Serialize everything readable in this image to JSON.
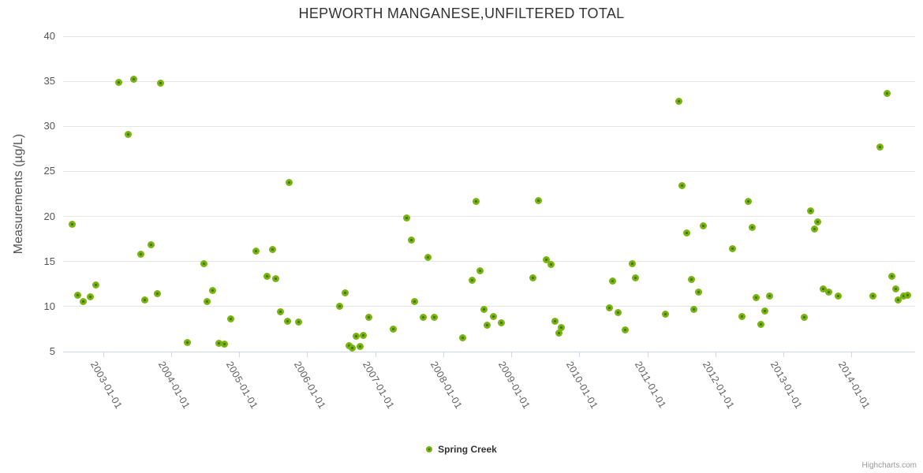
{
  "title": "HEPWORTH MANGANESE,UNFILTERED TOTAL",
  "credits_label": "Highcharts.com",
  "legend": {
    "series_label": "Spring Creek"
  },
  "colors": {
    "marker_fill": "#79b30e",
    "marker_core": "#3f7505",
    "gridline": "#e6e6e6",
    "axis_line": "#ccd6eb",
    "title_text": "#333333",
    "axis_label_text": "#606060",
    "credits_text": "#999999"
  },
  "chart_data": {
    "type": "scatter",
    "title": "HEPWORTH MANGANESE,UNFILTERED TOTAL",
    "xlabel": "",
    "ylabel": "Measurements (µg/L)",
    "ylim": [
      5,
      40
    ],
    "y_ticks": [
      5,
      10,
      15,
      20,
      25,
      30,
      35,
      40
    ],
    "x_tick_labels": [
      "2003-01-01",
      "2004-01-01",
      "2005-01-01",
      "2006-01-01",
      "2007-01-01",
      "2008-01-01",
      "2009-01-01",
      "2010-01-01",
      "2011-01-01",
      "2012-01-01",
      "2013-01-01",
      "2014-01-01"
    ],
    "xlim_decimal_years": [
      2002.41,
      2014.94
    ],
    "grid": true,
    "legend_position": "bottom",
    "x_unit": "decimal_year",
    "series": [
      {
        "name": "Spring Creek",
        "color": "#79b30e",
        "points": [
          [
            2002.54,
            19.1
          ],
          [
            2002.624,
            11.3
          ],
          [
            2002.713,
            10.6
          ],
          [
            2002.81,
            11.1
          ],
          [
            2002.891,
            12.4
          ],
          [
            2003.224,
            34.9
          ],
          [
            2003.366,
            29.1
          ],
          [
            2003.448,
            35.2
          ],
          [
            2003.557,
            15.8
          ],
          [
            2003.615,
            10.7
          ],
          [
            2003.703,
            16.9
          ],
          [
            2003.792,
            11.4
          ],
          [
            2003.846,
            34.8
          ],
          [
            2004.241,
            6.0
          ],
          [
            2004.484,
            14.8
          ],
          [
            2004.531,
            10.6
          ],
          [
            2004.615,
            11.8
          ],
          [
            2004.7,
            5.9
          ],
          [
            2004.789,
            5.8
          ],
          [
            2004.879,
            8.6
          ],
          [
            2005.253,
            16.2
          ],
          [
            2005.407,
            13.4
          ],
          [
            2005.493,
            16.3
          ],
          [
            2005.539,
            13.1
          ],
          [
            2005.612,
            9.4
          ],
          [
            2005.713,
            8.4
          ],
          [
            2005.737,
            23.8
          ],
          [
            2005.879,
            8.3
          ],
          [
            2006.479,
            10.0
          ],
          [
            2006.56,
            11.5
          ],
          [
            2006.613,
            5.7
          ],
          [
            2006.664,
            5.4
          ],
          [
            2006.722,
            6.7
          ],
          [
            2006.78,
            5.6
          ],
          [
            2006.822,
            6.8
          ],
          [
            2006.911,
            8.8
          ],
          [
            2007.263,
            7.5
          ],
          [
            2007.464,
            19.8
          ],
          [
            2007.526,
            17.4
          ],
          [
            2007.583,
            10.6
          ],
          [
            2007.708,
            8.8
          ],
          [
            2007.773,
            15.5
          ],
          [
            2007.865,
            8.8
          ],
          [
            2008.28,
            6.5
          ],
          [
            2008.43,
            12.9
          ],
          [
            2008.48,
            21.7
          ],
          [
            2008.538,
            14.0
          ],
          [
            2008.596,
            9.7
          ],
          [
            2008.65,
            7.9
          ],
          [
            2008.743,
            8.9
          ],
          [
            2008.859,
            8.2
          ],
          [
            2009.32,
            13.2
          ],
          [
            2009.401,
            21.8
          ],
          [
            2009.517,
            15.2
          ],
          [
            2009.582,
            14.7
          ],
          [
            2009.637,
            8.4
          ],
          [
            2009.695,
            7.1
          ],
          [
            2009.73,
            7.7
          ],
          [
            2010.44,
            9.9
          ],
          [
            2010.486,
            12.8
          ],
          [
            2010.572,
            9.3
          ],
          [
            2010.672,
            7.4
          ],
          [
            2010.773,
            14.8
          ],
          [
            2010.819,
            13.2
          ],
          [
            2011.26,
            9.2
          ],
          [
            2011.457,
            32.8
          ],
          [
            2011.511,
            23.4
          ],
          [
            2011.573,
            18.2
          ],
          [
            2011.646,
            13.0
          ],
          [
            2011.686,
            9.7
          ],
          [
            2011.755,
            11.6
          ],
          [
            2011.817,
            19.0
          ],
          [
            2012.255,
            16.4
          ],
          [
            2012.391,
            8.9
          ],
          [
            2012.484,
            21.7
          ],
          [
            2012.545,
            18.8
          ],
          [
            2012.604,
            11.0
          ],
          [
            2012.673,
            8.0
          ],
          [
            2012.731,
            9.5
          ],
          [
            2012.793,
            11.2
          ],
          [
            2013.311,
            8.8
          ],
          [
            2013.404,
            20.6
          ],
          [
            2013.458,
            18.6
          ],
          [
            2013.504,
            19.4
          ],
          [
            2013.589,
            12.0
          ],
          [
            2013.67,
            11.6
          ],
          [
            2013.809,
            11.2
          ],
          [
            2014.317,
            11.2
          ],
          [
            2014.422,
            27.7
          ],
          [
            2014.518,
            33.7
          ],
          [
            2014.588,
            13.4
          ],
          [
            2014.646,
            12.0
          ],
          [
            2014.681,
            10.7
          ],
          [
            2014.762,
            11.2
          ],
          [
            2014.82,
            11.3
          ]
        ]
      }
    ]
  }
}
